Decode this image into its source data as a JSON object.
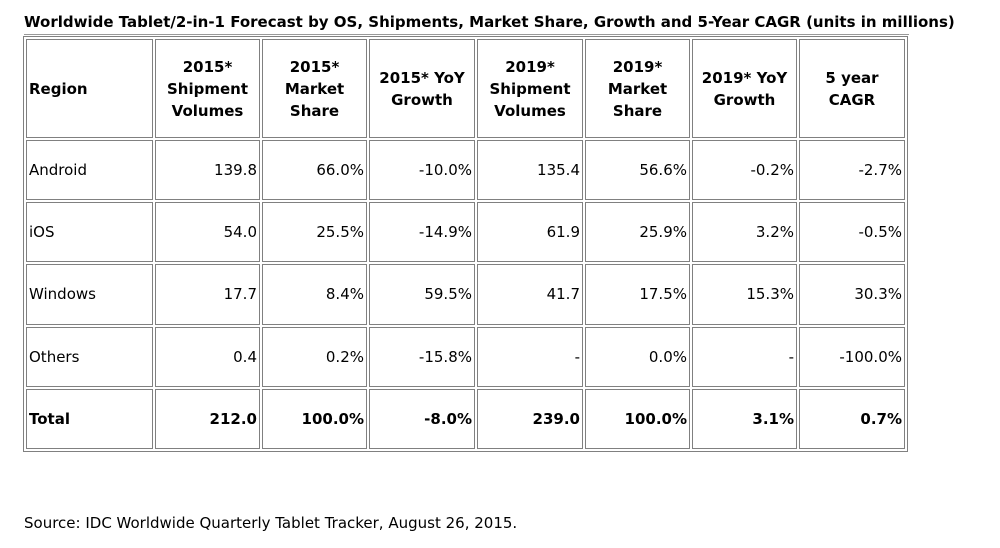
{
  "title": "Worldwide Tablet/2-in-1 Forecast by OS, Shipments, Market Share, Growth and 5-Year CAGR (units in millions)",
  "columns": [
    [
      "Region"
    ],
    [
      "2015*",
      "Shipment",
      "Volumes"
    ],
    [
      "2015*",
      "Market",
      "Share"
    ],
    [
      "2015* YoY",
      "Growth"
    ],
    [
      "2019*",
      "Shipment",
      "Volumes"
    ],
    [
      "2019*",
      "Market",
      "Share"
    ],
    [
      "2019* YoY",
      "Growth"
    ],
    [
      "5 year",
      "CAGR"
    ]
  ],
  "rows": [
    [
      "Android",
      "139.8",
      "66.0%",
      "-10.0%",
      "135.4",
      "56.6%",
      "-0.2%",
      "-2.7%"
    ],
    [
      "iOS",
      "54.0",
      "25.5%",
      "-14.9%",
      "61.9",
      "25.9%",
      "3.2%",
      "-0.5%"
    ],
    [
      "Windows",
      "17.7",
      "8.4%",
      "59.5%",
      "41.7",
      "17.5%",
      "15.3%",
      "30.3%"
    ],
    [
      "Others",
      "0.4",
      "0.2%",
      "-15.8%",
      "-",
      "0.0%",
      "-",
      "-100.0%"
    ]
  ],
  "total": [
    "Total",
    "212.0",
    "100.0%",
    "-8.0%",
    "239.0",
    "100.0%",
    "3.1%",
    "0.7%"
  ],
  "source": "Source: IDC Worldwide Quarterly Tablet Tracker, August 26, 2015."
}
